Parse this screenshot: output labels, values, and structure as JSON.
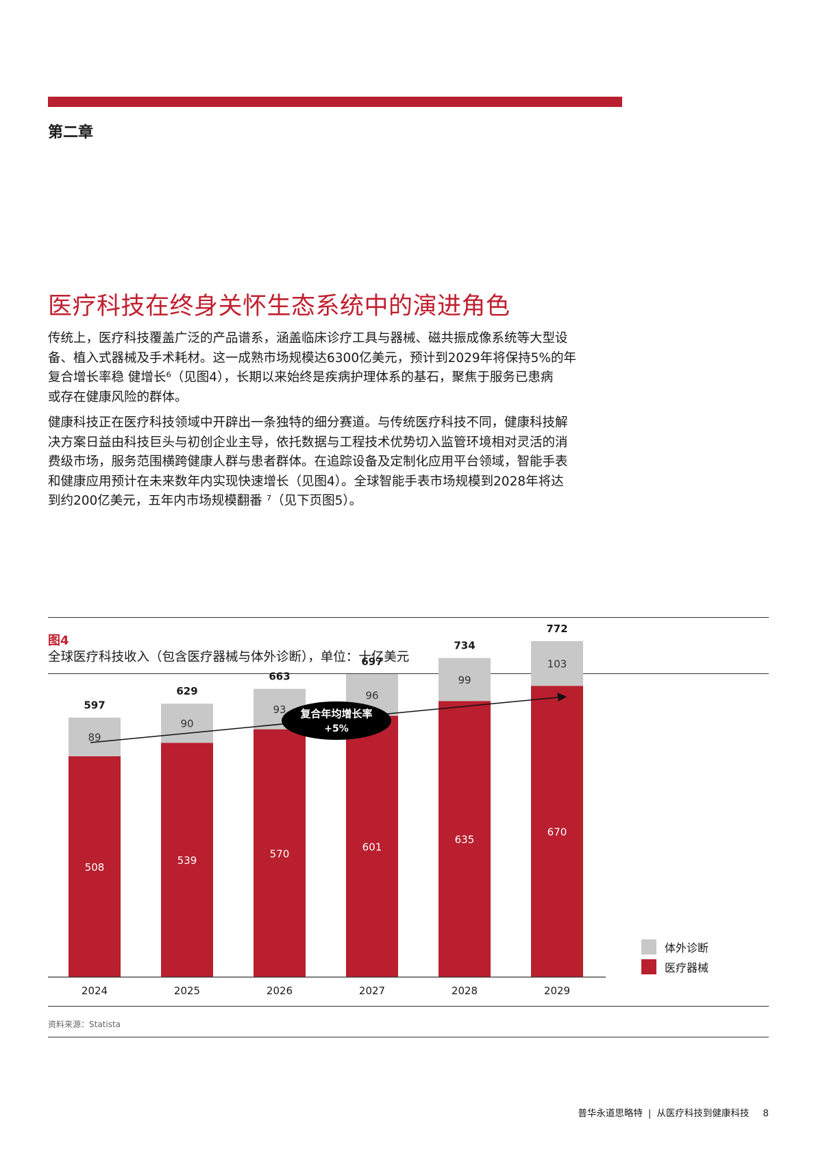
{
  "chapter": "第二章",
  "section_title": "医疗科技在终身关怀生态系统中的演进角色",
  "paragraph1_lines": [
    "传统上，医疗科技覆盖广泛的产品谱系，涵盖临床诊疗工具与器械、磁共振成像系统等大型设",
    "备、植入式器械及手术耗材。这一成熟市场规模达6300亿美元，预计到2029年将保持5%的年",
    "复合增长率稳 健增长⁶（见图4），长期以来始终是疾病护理体系的基石，聚焦于服务已患病",
    "或存在健康风险的群体。"
  ],
  "paragraph2_lines": [
    "健康科技正在医疗科技领域中开辟出一条独特的细分赛道。与传统医疗科技不同，健康科技解",
    "决方案日益由科技巨头与初创企业主导，依托数据与工程技术优势切入监管环境相对灵活的消",
    "费级市场，服务范围横跨健康人群与患者群体。在追踪设备及定制化应用平台领域，智能手表",
    "和健康应用预计在未来数年内实现快速增长（见图4）。全球智能手表市场规模到2028年将达",
    "到约200亿美元，五年内市场规模翻番 ⁷（见下页图5）。"
  ],
  "figure": {
    "label": "图4",
    "caption": "全球医疗科技收入（包含医疗器械与体外诊断），单位：十亿美元"
  },
  "chart_data": {
    "type": "bar",
    "stacked": true,
    "categories": [
      "2024",
      "2025",
      "2026",
      "2027",
      "2028",
      "2029"
    ],
    "series": [
      {
        "name": "医疗器械",
        "color": "#b91f2e",
        "values": [
          508,
          539,
          570,
          601,
          635,
          670
        ]
      },
      {
        "name": "体外诊断",
        "color": "#c8c8c8",
        "values": [
          89,
          90,
          93,
          96,
          99,
          103
        ]
      }
    ],
    "totals": [
      597,
      629,
      663,
      697,
      734,
      772
    ],
    "annotation_title": "复合年均增长率",
    "annotation_value": "+5%",
    "legend_position": "bottom-right",
    "legend": [
      "体外诊断",
      "医疗器械"
    ],
    "grid": false
  },
  "source": "资料来源：Statista",
  "footer": {
    "brand": "普华永道思略特",
    "separator": "|",
    "title": "从医疗科技到健康科技",
    "page": "8"
  }
}
